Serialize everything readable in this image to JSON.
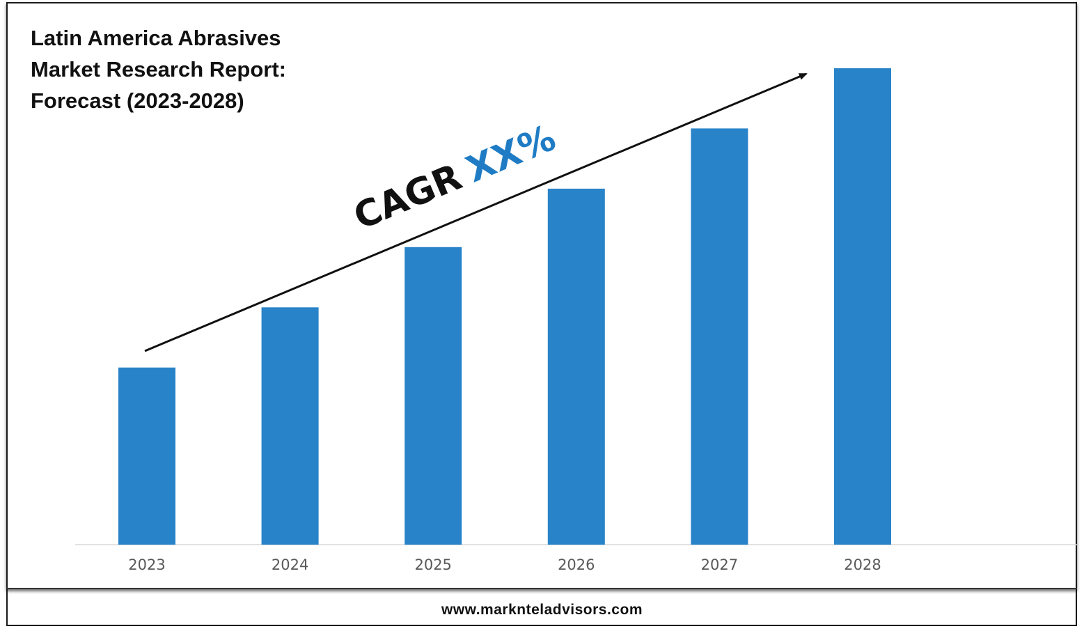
{
  "chart_data": {
    "type": "bar",
    "title_lines": [
      "Latin America Abrasives",
      "Market Research Report:",
      "Forecast (2023-2028)"
    ],
    "categories": [
      "2023",
      "2024",
      "2025",
      "2026",
      "2027",
      "2028"
    ],
    "values": [
      1.0,
      1.34,
      1.68,
      2.01,
      2.35,
      2.69
    ],
    "ylim": [
      0,
      2.8
    ],
    "grid": false,
    "legend": "none",
    "annotation": {
      "prefix": "CAGR",
      "value": "XX%"
    },
    "bar_color": "#2883C8",
    "annotation_value_color": "#1F7CC4"
  },
  "footer": {
    "url": "www.marknteladvisors.com"
  }
}
